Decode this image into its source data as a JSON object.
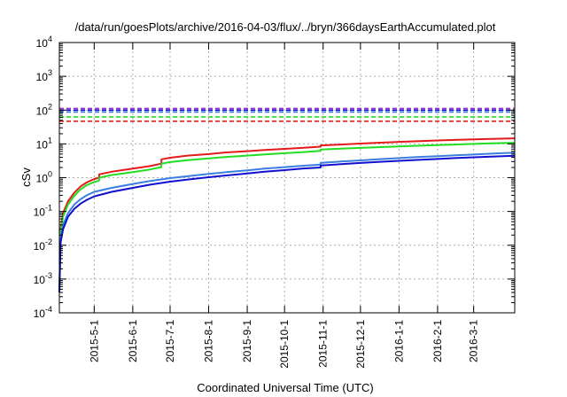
{
  "chart_data": {
    "type": "line",
    "title": "/data/run/goesPlots/archive/2016-04-03/flux/../bryn/366daysEarthAccumulated.plot",
    "xlabel": "Coordinated Universal Time (UTC)",
    "ylabel": "cSv",
    "yscale": "log",
    "ylim": [
      0.0001,
      10000
    ],
    "y_ticks": [
      {
        "base": "10",
        "exp": "-4"
      },
      {
        "base": "10",
        "exp": "-3"
      },
      {
        "base": "10",
        "exp": "-2"
      },
      {
        "base": "10",
        "exp": "-1"
      },
      {
        "base": "10",
        "exp": "0"
      },
      {
        "base": "10",
        "exp": "1"
      },
      {
        "base": "10",
        "exp": "2"
      },
      {
        "base": "10",
        "exp": "3"
      },
      {
        "base": "10",
        "exp": "4"
      }
    ],
    "xlim": [
      "2015-04-03",
      "2016-04-03"
    ],
    "x_ticks": [
      "2015-5-1",
      "2015-6-1",
      "2015-7-1",
      "2015-8-1",
      "2015-9-1",
      "2015-10-1",
      "2015-11-1",
      "2015-12-1",
      "2016-1-1",
      "2016-2-1",
      "2016-3-1"
    ],
    "grid": true,
    "series": [
      {
        "color": "#e41a1c",
        "style": "solid",
        "points": [
          [
            "2015-04-03",
            0.0004
          ],
          [
            "2015-04-04",
            0.03
          ],
          [
            "2015-04-06",
            0.09
          ],
          [
            "2015-04-10",
            0.2
          ],
          [
            "2015-04-15",
            0.36
          ],
          [
            "2015-04-20",
            0.55
          ],
          [
            "2015-04-25",
            0.72
          ],
          [
            "2015-04-30",
            0.88
          ],
          [
            "2015-05-05",
            1.0
          ],
          [
            "2015-05-05",
            1.25
          ],
          [
            "2015-05-15",
            1.5
          ],
          [
            "2015-06-01",
            1.85
          ],
          [
            "2015-06-15",
            2.2
          ],
          [
            "2015-06-24",
            2.6
          ],
          [
            "2015-06-24",
            3.5
          ],
          [
            "2015-07-01",
            3.9
          ],
          [
            "2015-07-15",
            4.5
          ],
          [
            "2015-08-01",
            5.0
          ],
          [
            "2015-08-15",
            5.6
          ],
          [
            "2015-09-01",
            6.1
          ],
          [
            "2015-09-15",
            6.6
          ],
          [
            "2015-10-01",
            7.1
          ],
          [
            "2015-10-15",
            7.6
          ],
          [
            "2015-10-30",
            8.3
          ],
          [
            "2015-10-30",
            9.0
          ],
          [
            "2015-11-15",
            9.6
          ],
          [
            "2015-12-01",
            10.2
          ],
          [
            "2015-12-15",
            10.8
          ],
          [
            "2016-01-01",
            11.5
          ],
          [
            "2016-01-15",
            12.0
          ],
          [
            "2016-02-01",
            12.6
          ],
          [
            "2016-02-15",
            13.1
          ],
          [
            "2016-03-01",
            13.6
          ],
          [
            "2016-03-15",
            14.1
          ],
          [
            "2016-04-03",
            14.6
          ]
        ]
      },
      {
        "color": "#22dd22",
        "style": "solid",
        "points": [
          [
            "2015-04-03",
            0.0004
          ],
          [
            "2015-04-04",
            0.025
          ],
          [
            "2015-04-06",
            0.07
          ],
          [
            "2015-04-10",
            0.16
          ],
          [
            "2015-04-15",
            0.29
          ],
          [
            "2015-04-20",
            0.45
          ],
          [
            "2015-04-25",
            0.6
          ],
          [
            "2015-04-30",
            0.72
          ],
          [
            "2015-05-05",
            0.82
          ],
          [
            "2015-05-05",
            1.0
          ],
          [
            "2015-05-15",
            1.2
          ],
          [
            "2015-06-01",
            1.45
          ],
          [
            "2015-06-15",
            1.75
          ],
          [
            "2015-06-24",
            2.05
          ],
          [
            "2015-06-24",
            2.6
          ],
          [
            "2015-07-01",
            2.9
          ],
          [
            "2015-07-15",
            3.3
          ],
          [
            "2015-08-01",
            3.7
          ],
          [
            "2015-08-15",
            4.1
          ],
          [
            "2015-09-01",
            4.5
          ],
          [
            "2015-09-15",
            4.9
          ],
          [
            "2015-10-01",
            5.3
          ],
          [
            "2015-10-15",
            5.7
          ],
          [
            "2015-10-30",
            6.2
          ],
          [
            "2015-10-30",
            6.8
          ],
          [
            "2015-11-15",
            7.2
          ],
          [
            "2015-12-01",
            7.6
          ],
          [
            "2015-12-15",
            8.0
          ],
          [
            "2016-01-01",
            8.4
          ],
          [
            "2016-01-15",
            8.8
          ],
          [
            "2016-02-01",
            9.2
          ],
          [
            "2016-02-15",
            9.6
          ],
          [
            "2016-03-01",
            10.0
          ],
          [
            "2016-03-15",
            10.4
          ],
          [
            "2016-04-03",
            10.8
          ]
        ]
      },
      {
        "color": "#3a7fe0",
        "style": "solid",
        "points": [
          [
            "2015-04-03",
            0.0004
          ],
          [
            "2015-04-04",
            0.015
          ],
          [
            "2015-04-06",
            0.04
          ],
          [
            "2015-04-10",
            0.09
          ],
          [
            "2015-04-15",
            0.16
          ],
          [
            "2015-04-20",
            0.23
          ],
          [
            "2015-04-25",
            0.3
          ],
          [
            "2015-05-01",
            0.38
          ],
          [
            "2015-05-15",
            0.5
          ],
          [
            "2015-06-01",
            0.65
          ],
          [
            "2015-06-15",
            0.8
          ],
          [
            "2015-07-01",
            0.97
          ],
          [
            "2015-07-15",
            1.1
          ],
          [
            "2015-08-01",
            1.3
          ],
          [
            "2015-08-15",
            1.45
          ],
          [
            "2015-09-01",
            1.65
          ],
          [
            "2015-09-15",
            1.85
          ],
          [
            "2015-10-01",
            2.05
          ],
          [
            "2015-10-15",
            2.25
          ],
          [
            "2015-10-30",
            2.45
          ],
          [
            "2015-10-30",
            2.75
          ],
          [
            "2015-11-15",
            3.0
          ],
          [
            "2015-12-01",
            3.25
          ],
          [
            "2015-12-15",
            3.5
          ],
          [
            "2016-01-01",
            3.8
          ],
          [
            "2016-01-15",
            4.05
          ],
          [
            "2016-02-01",
            4.3
          ],
          [
            "2016-02-15",
            4.6
          ],
          [
            "2016-03-01",
            4.85
          ],
          [
            "2016-03-15",
            5.15
          ],
          [
            "2016-04-03",
            5.5
          ]
        ]
      },
      {
        "color": "#1010d0",
        "style": "solid",
        "points": [
          [
            "2015-04-03",
            0.0004
          ],
          [
            "2015-04-04",
            0.012
          ],
          [
            "2015-04-06",
            0.03
          ],
          [
            "2015-04-10",
            0.07
          ],
          [
            "2015-04-15",
            0.12
          ],
          [
            "2015-04-20",
            0.17
          ],
          [
            "2015-04-25",
            0.22
          ],
          [
            "2015-05-01",
            0.28
          ],
          [
            "2015-05-15",
            0.38
          ],
          [
            "2015-06-01",
            0.5
          ],
          [
            "2015-06-15",
            0.62
          ],
          [
            "2015-07-01",
            0.76
          ],
          [
            "2015-07-15",
            0.88
          ],
          [
            "2015-08-01",
            1.03
          ],
          [
            "2015-08-15",
            1.16
          ],
          [
            "2015-09-01",
            1.33
          ],
          [
            "2015-09-15",
            1.5
          ],
          [
            "2015-10-01",
            1.67
          ],
          [
            "2015-10-15",
            1.85
          ],
          [
            "2015-10-30",
            2.0
          ],
          [
            "2015-10-30",
            2.3
          ],
          [
            "2015-11-15",
            2.5
          ],
          [
            "2015-12-01",
            2.72
          ],
          [
            "2015-12-15",
            2.92
          ],
          [
            "2016-01-01",
            3.15
          ],
          [
            "2016-01-15",
            3.35
          ],
          [
            "2016-02-01",
            3.58
          ],
          [
            "2016-02-15",
            3.8
          ],
          [
            "2016-03-01",
            4.0
          ],
          [
            "2016-03-15",
            4.2
          ],
          [
            "2016-04-03",
            4.45
          ]
        ]
      },
      {
        "color": "#e41a1c",
        "style": "dashed",
        "points": [
          [
            "2015-04-03",
            47
          ],
          [
            "2016-04-03",
            47
          ]
        ]
      },
      {
        "color": "#22dd22",
        "style": "dashed",
        "points": [
          [
            "2015-04-03",
            63
          ],
          [
            "2016-04-03",
            63
          ]
        ]
      },
      {
        "color": "#3a7fe0",
        "style": "dashed",
        "points": [
          [
            "2015-04-03",
            88
          ],
          [
            "2016-04-03",
            88
          ]
        ]
      },
      {
        "color": "#1010d0",
        "style": "dashed",
        "points": [
          [
            "2015-04-03",
            100
          ],
          [
            "2016-04-03",
            100
          ]
        ]
      },
      {
        "color": "#9b30d0",
        "style": "dashed",
        "points": [
          [
            "2015-04-03",
            112
          ],
          [
            "2016-04-03",
            112
          ]
        ]
      }
    ]
  }
}
